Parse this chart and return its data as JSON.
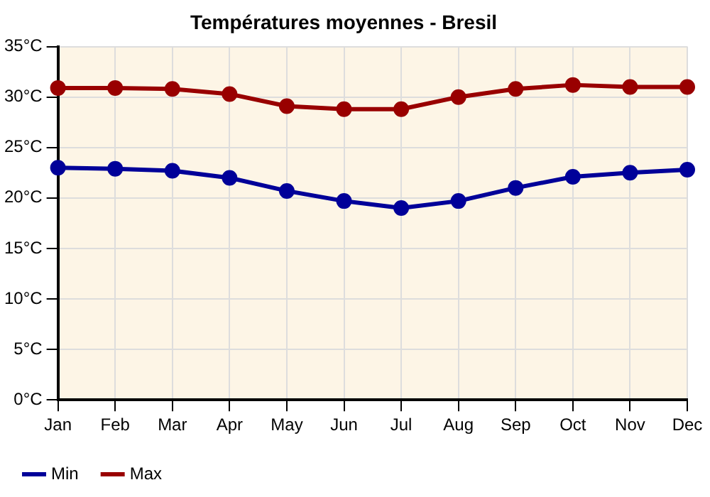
{
  "chart_data": {
    "type": "line",
    "title": "Températures moyennes - Bresil",
    "categories": [
      "Jan",
      "Feb",
      "Mar",
      "Apr",
      "May",
      "Jun",
      "Jul",
      "Aug",
      "Sep",
      "Oct",
      "Nov",
      "Dec"
    ],
    "series": [
      {
        "name": "Min",
        "color": "#000099",
        "values": [
          23.0,
          22.9,
          22.7,
          22.0,
          20.7,
          19.7,
          19.0,
          19.7,
          21.0,
          22.1,
          22.5,
          22.8
        ]
      },
      {
        "name": "Max",
        "color": "#990000",
        "values": [
          30.9,
          30.9,
          30.8,
          30.3,
          29.1,
          28.8,
          28.8,
          30.0,
          30.8,
          31.2,
          31.0,
          31.0
        ]
      }
    ],
    "ylim": [
      0,
      35
    ],
    "yticks": [
      {
        "value": 0,
        "label": "0°C"
      },
      {
        "value": 5,
        "label": "5°C"
      },
      {
        "value": 10,
        "label": "10°C"
      },
      {
        "value": 15,
        "label": "15°C"
      },
      {
        "value": 20,
        "label": "20°C"
      },
      {
        "value": 25,
        "label": "25°C"
      },
      {
        "value": 30,
        "label": "30°C"
      },
      {
        "value": 35,
        "label": "35°C"
      }
    ],
    "grid": true,
    "legend": "bottom left",
    "marker": "circle",
    "line_style": "solid"
  }
}
